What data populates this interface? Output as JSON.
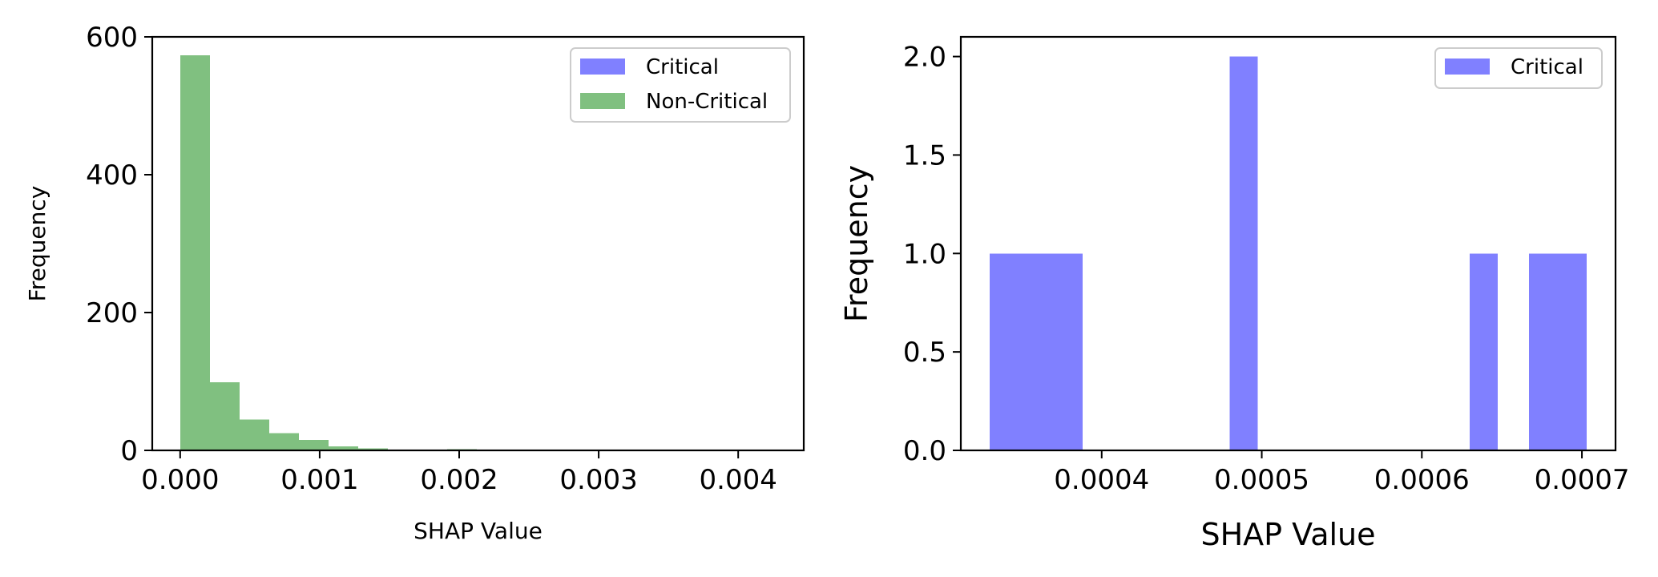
{
  "chart_data": [
    {
      "type": "bar",
      "title": "",
      "xlabel": "SHAP Value",
      "ylabel": "Frequency",
      "xlim": [
        -0.0002,
        0.00447
      ],
      "ylim": [
        0,
        600
      ],
      "xticks": [
        0.0,
        0.001,
        0.002,
        0.003,
        0.004
      ],
      "xtick_labels": [
        "0.000",
        "0.001",
        "0.002",
        "0.003",
        "0.004"
      ],
      "yticks": [
        0,
        200,
        400,
        600
      ],
      "ytick_labels": [
        "0",
        "200",
        "400",
        "600"
      ],
      "legend_position": "top-right",
      "series": [
        {
          "name": "Critical",
          "color": "#8080ff",
          "bins": []
        },
        {
          "name": "Non-Critical",
          "color": "#80c080",
          "bins": [
            {
              "x0": 0.0,
              "x1": 0.0002125,
              "count": 573
            },
            {
              "x0": 0.0002125,
              "x1": 0.000425,
              "count": 99
            },
            {
              "x0": 0.000425,
              "x1": 0.0006375,
              "count": 45
            },
            {
              "x0": 0.0006375,
              "x1": 0.00085,
              "count": 25
            },
            {
              "x0": 0.00085,
              "x1": 0.0010625,
              "count": 15
            },
            {
              "x0": 0.0010625,
              "x1": 0.001275,
              "count": 6
            },
            {
              "x0": 0.001275,
              "x1": 0.0014875,
              "count": 3
            },
            {
              "x0": 0.0014875,
              "x1": 0.0017,
              "count": 1
            },
            {
              "x0": 0.0017,
              "x1": 0.0019125,
              "count": 1
            },
            {
              "x0": 0.0019125,
              "x1": 0.002125,
              "count": 2
            },
            {
              "x0": 0.002125,
              "x1": 0.0023375,
              "count": 1
            }
          ]
        }
      ]
    },
    {
      "type": "bar",
      "title": "",
      "xlabel": "SHAP Value",
      "ylabel": "Frequency",
      "xlim": [
        0.000312,
        0.000721
      ],
      "ylim": [
        0,
        2.1
      ],
      "xticks": [
        0.0004,
        0.0005,
        0.0006,
        0.0007
      ],
      "xtick_labels": [
        "0.0004",
        "0.0005",
        "0.0006",
        "0.0007"
      ],
      "yticks": [
        0.0,
        0.5,
        1.0,
        1.5,
        2.0
      ],
      "ytick_labels": [
        "0.0",
        "0.5",
        "1.0",
        "1.5",
        "2.0"
      ],
      "legend_position": "top-right",
      "series": [
        {
          "name": "Critical",
          "color": "#8080ff",
          "bins": [
            {
              "x0": 0.00033,
              "x1": 0.000355,
              "count": 1
            },
            {
              "x0": 0.000355,
              "x1": 0.00038,
              "count": 1
            },
            {
              "x0": 0.00038,
              "x1": 0.000388,
              "count": 1
            },
            {
              "x0": 0.00048,
              "x1": 0.0004975,
              "count": 2
            },
            {
              "x0": 0.00063,
              "x1": 0.0006475,
              "count": 1
            },
            {
              "x0": 0.000667,
              "x1": 0.000685,
              "count": 1
            },
            {
              "x0": 0.000685,
              "x1": 0.000703,
              "count": 1
            }
          ]
        }
      ]
    }
  ]
}
